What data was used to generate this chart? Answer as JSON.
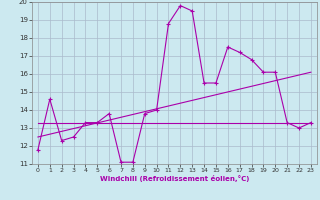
{
  "xlabel": "Windchill (Refroidissement éolien,°C)",
  "xlim": [
    -0.5,
    23.5
  ],
  "ylim": [
    11,
    20
  ],
  "yticks": [
    11,
    12,
    13,
    14,
    15,
    16,
    17,
    18,
    19,
    20
  ],
  "xticks": [
    0,
    1,
    2,
    3,
    4,
    5,
    6,
    7,
    8,
    9,
    10,
    11,
    12,
    13,
    14,
    15,
    16,
    17,
    18,
    19,
    20,
    21,
    22,
    23
  ],
  "bg_color": "#cce9f0",
  "grid_color": "#aabbcc",
  "line_color": "#aa00aa",
  "line1_x": [
    0,
    1,
    2,
    3,
    4,
    5,
    6,
    7,
    8,
    9,
    10,
    11,
    12,
    13,
    14,
    15,
    16,
    17,
    18,
    19,
    20,
    21,
    22,
    23
  ],
  "line1_y": [
    11.8,
    14.6,
    12.3,
    12.5,
    13.3,
    13.3,
    13.8,
    11.1,
    11.1,
    13.8,
    14.0,
    18.8,
    19.8,
    19.5,
    15.5,
    15.5,
    17.5,
    17.2,
    16.8,
    16.1,
    16.1,
    13.3,
    13.0,
    13.3
  ],
  "line2_x": [
    0,
    23
  ],
  "line2_y": [
    13.3,
    13.3
  ],
  "line3_x": [
    0,
    23
  ],
  "line3_y": [
    12.5,
    16.1
  ],
  "marker": "+"
}
